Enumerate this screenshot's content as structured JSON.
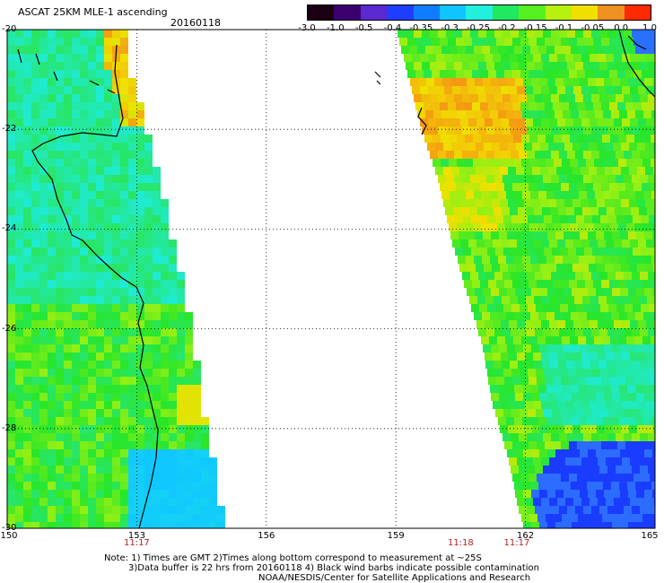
{
  "header": {
    "title": "ASCAT 25KM MLE-1 ascending",
    "date": "20160118"
  },
  "colorbar": {
    "labels": [
      "-3.0",
      "-1.0",
      "-0.5",
      "-0.4",
      "-0.35",
      "-0.3",
      "-0.25",
      "-0.2",
      "-0.15",
      "-0.1",
      "-0.05",
      "0.0",
      "1.0"
    ],
    "colors": [
      "#1a0010",
      "#3a0070",
      "#5a2ad0",
      "#1f3dff",
      "#0f7dff",
      "#10c5ff",
      "#22f0dd",
      "#20e860",
      "#55f020",
      "#b8f010",
      "#f0e000",
      "#f09020",
      "#ff2a00"
    ]
  },
  "axes": {
    "x_ticks": [
      "150",
      "153",
      "156",
      "159",
      "162",
      "165"
    ],
    "y_ticks": [
      "-20",
      "-22",
      "-24",
      "-26",
      "-28",
      "-30"
    ],
    "times": [
      {
        "text": "11:17",
        "lon": 153
      },
      {
        "text": "11:18",
        "lon": 160.5
      },
      {
        "text": "11:17",
        "lon": 161.8
      }
    ]
  },
  "notes": [
    "Note: 1) Times are GMT 2)Times along bottom correspond to measurement at ~25S",
    "3)Data buffer is 22 hrs from 20160118 4) Black wind barbs indicate possible contamination",
    "NOAA/NESDIS/Center for Satellite Applications and Research"
  ]
}
